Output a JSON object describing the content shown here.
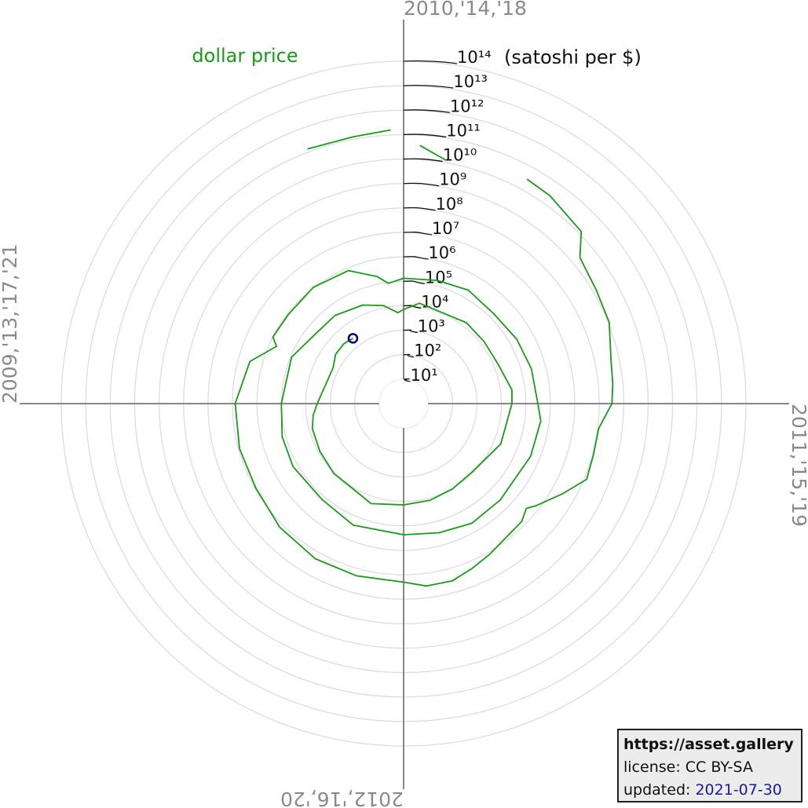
{
  "chart_data": {
    "type": "polar-spiral",
    "ylabel": "(satoshi per $)",
    "angle_labels": {
      "top": "2010,'14,'18",
      "right": "2011,'15,'19",
      "bottom": "2012,'16,'20",
      "left": "2009,'13,'17,'21"
    },
    "xlim": [
      2010,
      2014
    ],
    "direction": "clockwise",
    "ylim": [
      1,
      100000000000000
    ],
    "log_scale": true,
    "grid": true,
    "yticks": [
      {
        "value": 10,
        "label": "10¹"
      },
      {
        "value": 100,
        "label": "10²"
      },
      {
        "value": 1000,
        "label": "10³"
      },
      {
        "value": 10000,
        "label": "10⁴"
      },
      {
        "value": 100000,
        "label": "10⁵"
      },
      {
        "value": 1000000,
        "label": "10⁶"
      },
      {
        "value": 10000000,
        "label": "10⁷"
      },
      {
        "value": 100000000,
        "label": "10⁸"
      },
      {
        "value": 1000000000,
        "label": "10⁹"
      },
      {
        "value": 10000000000,
        "label": "10¹⁰"
      },
      {
        "value": 100000000000,
        "label": "10¹¹"
      },
      {
        "value": 1000000000000,
        "label": "10¹²"
      },
      {
        "value": 10000000000000,
        "label": "10¹³"
      },
      {
        "value": 100000000000000,
        "label": "10¹⁴"
      }
    ],
    "series": [
      {
        "name": "dollar price",
        "color": "#1a9a1a",
        "marker_color": "#000080",
        "x": [
          2009.77,
          2009.88,
          2009.97,
          2010.0,
          2010.04,
          2010.11,
          2010.2,
          2010.32,
          2010.39,
          2010.51,
          2010.56,
          2010.66,
          2010.76,
          2010.87,
          2010.94,
          2011.0,
          2011.08,
          2011.17,
          2011.25,
          2011.33,
          2011.42,
          2011.45,
          2011.5,
          2011.58,
          2011.67,
          2011.75,
          2011.83,
          2011.92,
          2012.0,
          2012.17,
          2012.33,
          2012.5,
          2012.67,
          2012.83,
          2013.0,
          2013.17,
          2013.27,
          2013.3,
          2013.42,
          2013.58,
          2013.75,
          2013.87,
          2013.92,
          2014.0,
          2014.17,
          2014.33,
          2014.5,
          2014.67,
          2014.83,
          2015.0,
          2015.08,
          2015.25,
          2015.5,
          2015.67,
          2015.83,
          2016.0,
          2016.25,
          2016.45,
          2016.67,
          2016.83,
          2017.0,
          2017.25,
          2017.42,
          2017.58,
          2017.75,
          2017.87,
          2017.96,
          2018.0,
          2018.1,
          2018.25,
          2018.42,
          2018.58,
          2018.75,
          2018.92,
          2019.0,
          2019.25,
          2019.5,
          2019.67,
          2019.83,
          2020.0,
          2020.2,
          2020.33,
          2020.5,
          2020.67,
          2020.83,
          2020.92,
          2021.0,
          2021.1,
          2021.2,
          2021.3,
          2021.4,
          2021.5,
          2021.58
        ],
        "values": [
          135000000000,
          126000000000,
          160000000000,
          null,
          38000000000,
          12600000000,
          null,
          30000000000,
          25000000000,
          13000000000,
          2300000000,
          1400000000,
          1100000000,
          460000000,
          390000000,
          330000000,
          110000000,
          110000000,
          125000000,
          29000000,
          6700000,
          4000000,
          6700000,
          7700000,
          12500000,
          20000000,
          33000000,
          33000000,
          20000000,
          20000000,
          20000000,
          14300000,
          9100000,
          9100000,
          7700000,
          3300000,
          500000,
          1000000,
          910000,
          1050000,
          770000,
          200000,
          91000,
          133000,
          167000,
          220000,
          160000,
          210000,
          260000,
          310000,
          450000,
          420000,
          380000,
          430000,
          300000,
          230000,
          240000,
          140000,
          160000,
          140000,
          100000,
          91000,
          40000,
          37000,
          23000,
          12500,
          5300,
          7100,
          14300,
          11000,
          15400,
          14300,
          15400,
          29000,
          27000,
          20000,
          9100,
          10500,
          12500,
          13900,
          20000,
          11600,
          10900,
          8700,
          7400,
          5300,
          3400,
          2200,
          1750,
          1720,
          2700,
          2900,
          2400
        ]
      }
    ]
  },
  "credit": {
    "site": "https://asset.gallery",
    "license": "license: CC BY-SA",
    "updated_label": "updated:",
    "updated": "2021-07-30"
  }
}
